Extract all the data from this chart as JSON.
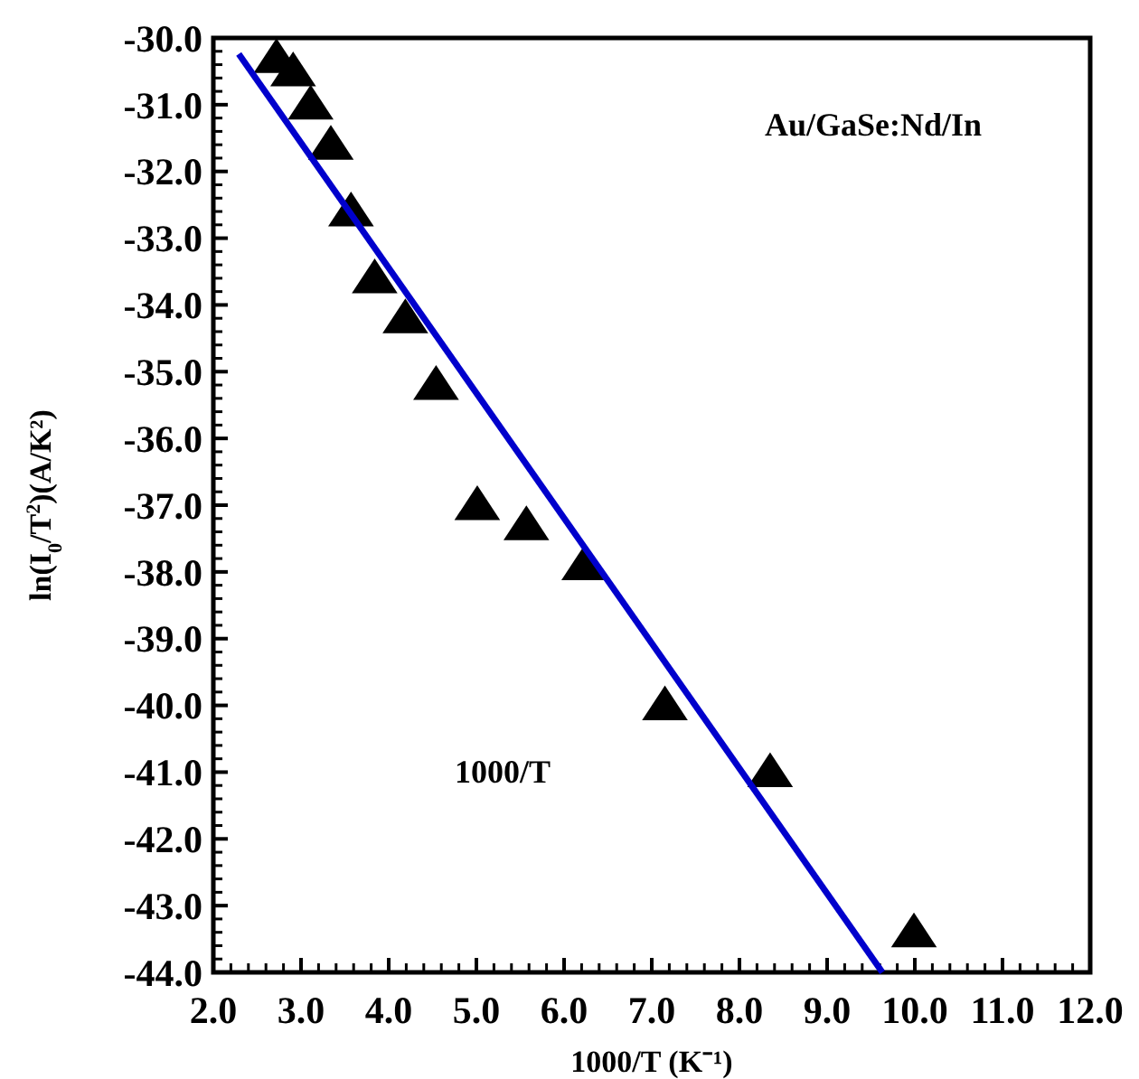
{
  "chart_data": {
    "type": "scatter",
    "xlabel": "1000/T (K⁻¹)",
    "ylabel": "ln(I$_{0}$/T$^{2}$)(A/K²)",
    "annotations": [
      "Au/GaSe:Nd/In",
      "1000/T"
    ],
    "xlim": [
      2,
      12
    ],
    "ylim": [
      -44,
      -30
    ],
    "xticks": [
      {
        "value": 2,
        "label": "2.0"
      },
      {
        "value": 3,
        "label": "3.0"
      },
      {
        "value": 4,
        "label": "4.0"
      },
      {
        "value": 5,
        "label": "5.0"
      },
      {
        "value": 6,
        "label": "6.0"
      },
      {
        "value": 7,
        "label": "7.0"
      },
      {
        "value": 8,
        "label": "8.0"
      },
      {
        "value": 9,
        "label": "9.0"
      },
      {
        "value": 10,
        "label": "10.0"
      },
      {
        "value": 11,
        "label": "11.0"
      },
      {
        "value": 12,
        "label": "12.0"
      }
    ],
    "yticks": [
      {
        "value": -30,
        "label": "-30.0"
      },
      {
        "value": -31,
        "label": "-31.0"
      },
      {
        "value": -32,
        "label": "-32.0"
      },
      {
        "value": -33,
        "label": "-33.0"
      },
      {
        "value": -34,
        "label": "-34.0"
      },
      {
        "value": -35,
        "label": "-35.0"
      },
      {
        "value": -36,
        "label": "-36.0"
      },
      {
        "value": -37,
        "label": "-37.0"
      },
      {
        "value": -38,
        "label": "-38.0"
      },
      {
        "value": -39,
        "label": "-39.0"
      },
      {
        "value": -40,
        "label": "-40.0"
      },
      {
        "value": -41,
        "label": "-41.0"
      },
      {
        "value": -42,
        "label": "-42.0"
      },
      {
        "value": -43,
        "label": "-43.0"
      },
      {
        "value": -44,
        "label": "-44.0"
      }
    ],
    "series": [
      {
        "marker": "triangle",
        "color": "#000000",
        "x": [
          2.72,
          2.91,
          3.11,
          3.34,
          3.57,
          3.84,
          4.19,
          4.54,
          5.01,
          5.57,
          6.23,
          7.15,
          8.35,
          9.99
        ],
        "values": [
          -30.3,
          -30.5,
          -31.0,
          -31.6,
          -32.6,
          -33.6,
          -34.2,
          -35.2,
          -37.0,
          -37.3,
          -37.9,
          -40.0,
          -41.0,
          -43.4
        ]
      },
      {
        "type": "line",
        "marker": "none",
        "color": "#0000cc",
        "x": [
          2.29,
          9.63
        ],
        "values": [
          -30.24,
          -44.0
        ]
      }
    ]
  }
}
